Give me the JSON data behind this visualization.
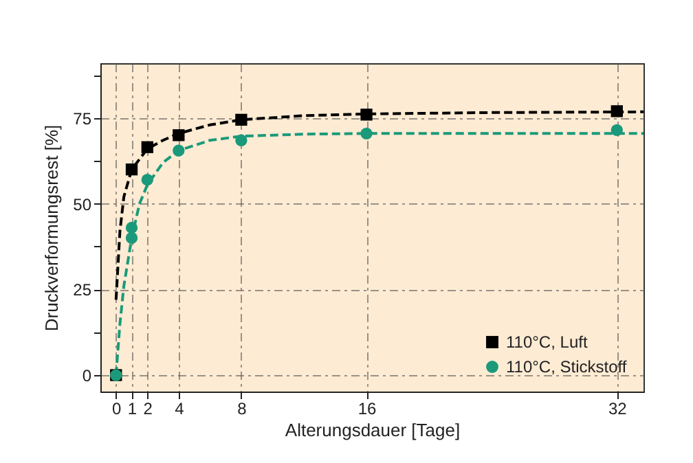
{
  "chart_data": {
    "type": "scatter",
    "xlabel": "Alterungsdauer [Tage]",
    "ylabel": "Druckverformungsrest [%]",
    "xlim": [
      -1,
      33.7
    ],
    "ylim": [
      -4.8,
      91
    ],
    "xticks": [
      0,
      1,
      2,
      4,
      8,
      16,
      32
    ],
    "yticks": [
      0,
      {
        "value": 12.5,
        "label": null
      },
      25,
      {
        "value": 37.5,
        "label": null
      },
      50,
      {
        "value": 62.5,
        "label": null
      },
      75,
      {
        "value": 87.5,
        "label": null
      }
    ],
    "grid": true,
    "legend": "bottom right",
    "series": [
      {
        "type": "line",
        "color": "#000000",
        "line_style": "dashed",
        "marker": "none",
        "x": [
          0,
          0.25,
          0.5,
          1,
          2,
          3,
          4,
          6,
          8,
          12,
          16,
          24,
          33.7
        ],
        "values": [
          22,
          42,
          52,
          60,
          66,
          68.5,
          70.5,
          73,
          74.5,
          75.7,
          76.2,
          76.6,
          76.8
        ]
      },
      {
        "type": "line",
        "color": "#1a9a7a",
        "line_style": "dashed",
        "marker": "none",
        "x": [
          0,
          0.25,
          0.5,
          1,
          1.5,
          2,
          3,
          4,
          6,
          8,
          12,
          16,
          33.7
        ],
        "values": [
          0,
          15,
          26,
          40,
          50,
          55.5,
          62,
          65.5,
          68.5,
          69.7,
          70.3,
          70.5,
          70.5
        ]
      },
      {
        "name": "110°C, Luft",
        "color": "#000000",
        "marker": "square",
        "x": [
          0,
          1,
          2,
          4,
          8,
          16,
          32
        ],
        "values": [
          0,
          60,
          66.5,
          70,
          74.5,
          76,
          77
        ]
      },
      {
        "name": "110°C, Stickstoff",
        "color": "#1a9a7a",
        "marker": "circle",
        "x": [
          0,
          1,
          1,
          2,
          4,
          8,
          16,
          32
        ],
        "values": [
          0,
          43,
          40,
          57,
          65.5,
          68.5,
          70.5,
          71.5
        ]
      }
    ]
  }
}
